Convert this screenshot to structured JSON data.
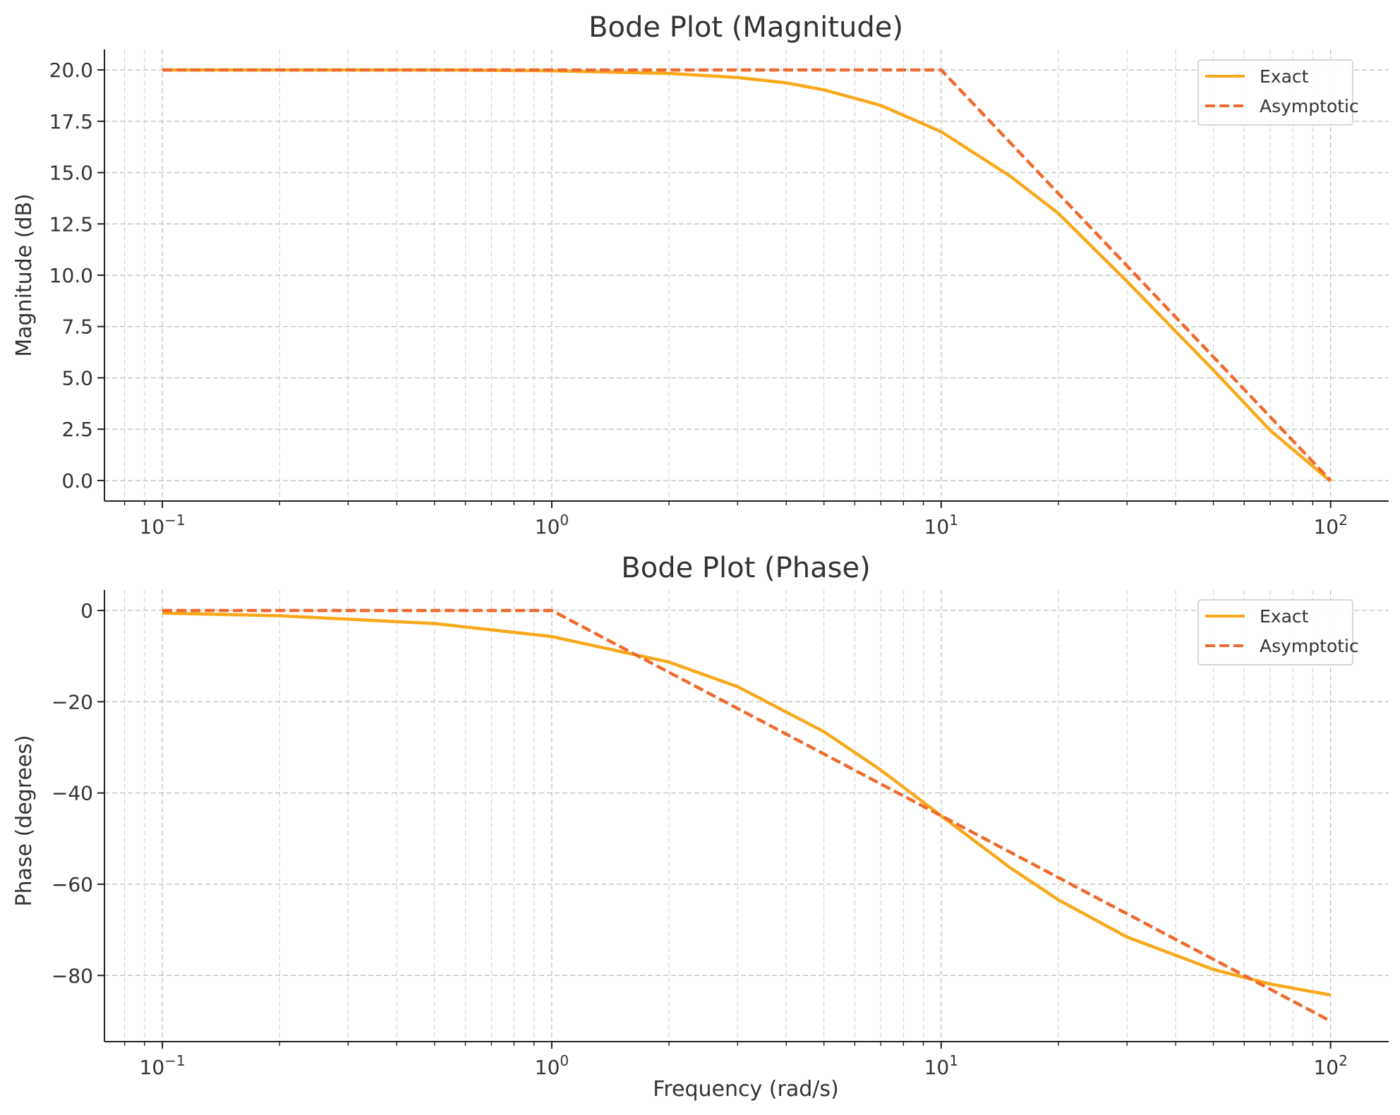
{
  "colors": {
    "exact": "#F9A81B",
    "asymptotic": "#EF6A2D",
    "text": "#333333",
    "grid": "#c4c4c4"
  },
  "chart_data": [
    {
      "type": "line",
      "title": "Bode Plot (Magnitude)",
      "xlabel": "",
      "ylabel": "Magnitude (dB)",
      "xscale": "log",
      "xlim": [
        0.071,
        141
      ],
      "ylim": [
        -1.0,
        21.0
      ],
      "xticks": [
        {
          "value": 0.1,
          "base": "10",
          "exp": "−1"
        },
        {
          "value": 1,
          "base": "10",
          "exp": "0"
        },
        {
          "value": 10,
          "base": "10",
          "exp": "1"
        },
        {
          "value": 100,
          "base": "10",
          "exp": "2"
        }
      ],
      "yticks": [
        "0.0",
        "2.5",
        "5.0",
        "7.5",
        "10.0",
        "12.5",
        "15.0",
        "17.5",
        "20.0"
      ],
      "grid": true,
      "legend": "top-right",
      "legend_entries": [
        "Exact",
        "Asymptotic"
      ],
      "series": [
        {
          "name": "Exact",
          "style": "solid",
          "x": [
            0.1,
            0.2,
            0.5,
            1,
            2,
            3,
            4,
            5,
            7,
            10,
            15,
            20,
            30,
            50,
            70,
            100
          ],
          "y": [
            20.0,
            20.0,
            20.0,
            19.96,
            19.83,
            19.63,
            19.37,
            19.03,
            18.27,
            16.99,
            14.84,
            13.01,
            9.7,
            5.38,
            2.44,
            -0.04
          ]
        },
        {
          "name": "Asymptotic",
          "style": "dashed",
          "x": [
            0.1,
            10,
            100
          ],
          "y": [
            20.0,
            20.0,
            0.0
          ]
        }
      ]
    },
    {
      "type": "line",
      "title": "Bode Plot (Phase)",
      "xlabel": "Frequency (rad/s)",
      "ylabel": "Phase (degrees)",
      "xscale": "log",
      "xlim": [
        0.071,
        141
      ],
      "ylim": [
        -94.5,
        4.5
      ],
      "xticks": [
        {
          "value": 0.1,
          "base": "10",
          "exp": "−1"
        },
        {
          "value": 1,
          "base": "10",
          "exp": "0"
        },
        {
          "value": 10,
          "base": "10",
          "exp": "1"
        },
        {
          "value": 100,
          "base": "10",
          "exp": "2"
        }
      ],
      "yticks": [
        "−80",
        "−60",
        "−40",
        "−20",
        "0"
      ],
      "grid": true,
      "legend": "top-right",
      "legend_entries": [
        "Exact",
        "Asymptotic"
      ],
      "series": [
        {
          "name": "Exact",
          "style": "solid",
          "x": [
            0.1,
            0.2,
            0.5,
            1,
            2,
            3,
            5,
            7,
            10,
            15,
            20,
            30,
            50,
            70,
            100
          ],
          "y": [
            -0.57,
            -1.15,
            -2.86,
            -5.71,
            -11.31,
            -16.7,
            -26.57,
            -34.99,
            -45.0,
            -56.31,
            -63.43,
            -71.57,
            -78.69,
            -81.87,
            -84.29
          ]
        },
        {
          "name": "Asymptotic",
          "style": "dashed",
          "x": [
            0.1,
            1,
            100
          ],
          "y": [
            0.0,
            0.0,
            -90.0
          ]
        }
      ]
    }
  ]
}
